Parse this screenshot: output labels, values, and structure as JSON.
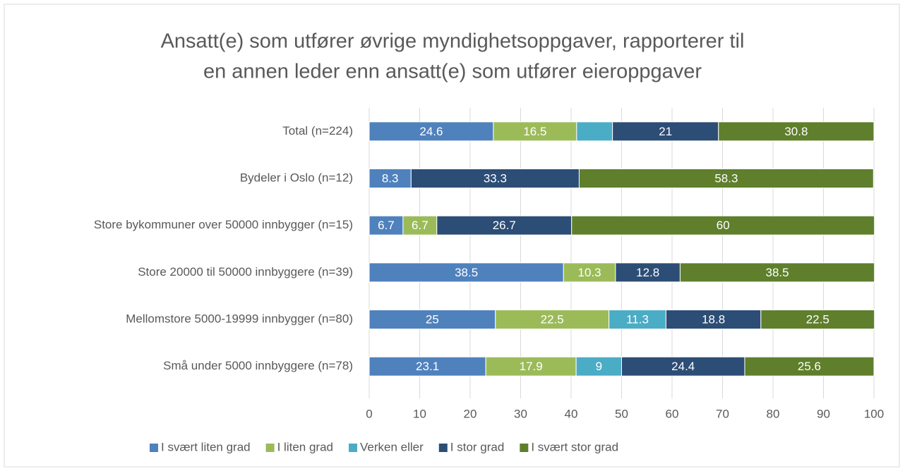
{
  "chart_data": {
    "type": "stacked_barh",
    "title": [
      "Ansatt(e) som utfører øvrige myndighetsoppgaver, rapporterer til",
      "en annen leder enn ansatt(e) som utfører eieroppgaver"
    ],
    "categories": [
      "Total (n=224)",
      "Bydeler i Oslo (n=12)",
      "Store bykommuner over 50000 innbygger (n=15)",
      "Store 20000 til 50000 innbyggere (n=39)",
      "Mellomstore 5000-19999 innbygger (n=80)",
      "Små under 5000 innbyggere (n=78)"
    ],
    "series": [
      {
        "name": "I svært liten grad",
        "color": "#4f81bd",
        "values": [
          24.6,
          8.3,
          6.7,
          38.5,
          25,
          23.1
        ]
      },
      {
        "name": "I liten grad",
        "color": "#9bbb59",
        "values": [
          16.5,
          null,
          6.7,
          10.3,
          22.5,
          17.9
        ]
      },
      {
        "name": "Verken eller",
        "color": "#4bacc6",
        "values": [
          7.1,
          null,
          null,
          null,
          11.3,
          9
        ],
        "value_labels": [
          null,
          null,
          null,
          null,
          "11.3",
          "9"
        ]
      },
      {
        "name": "I stor grad",
        "color": "#2c4d75",
        "values": [
          21,
          33.3,
          26.7,
          12.8,
          18.8,
          24.4
        ]
      },
      {
        "name": "I svært stor grad",
        "color": "#5f7f2c",
        "values": [
          30.8,
          58.3,
          60,
          38.5,
          22.5,
          25.6
        ]
      }
    ],
    "xlim": [
      0,
      100
    ],
    "xticks": [
      0,
      10,
      20,
      30,
      40,
      50,
      60,
      70,
      80,
      90,
      100
    ],
    "grid": true,
    "legend": "bottom"
  }
}
